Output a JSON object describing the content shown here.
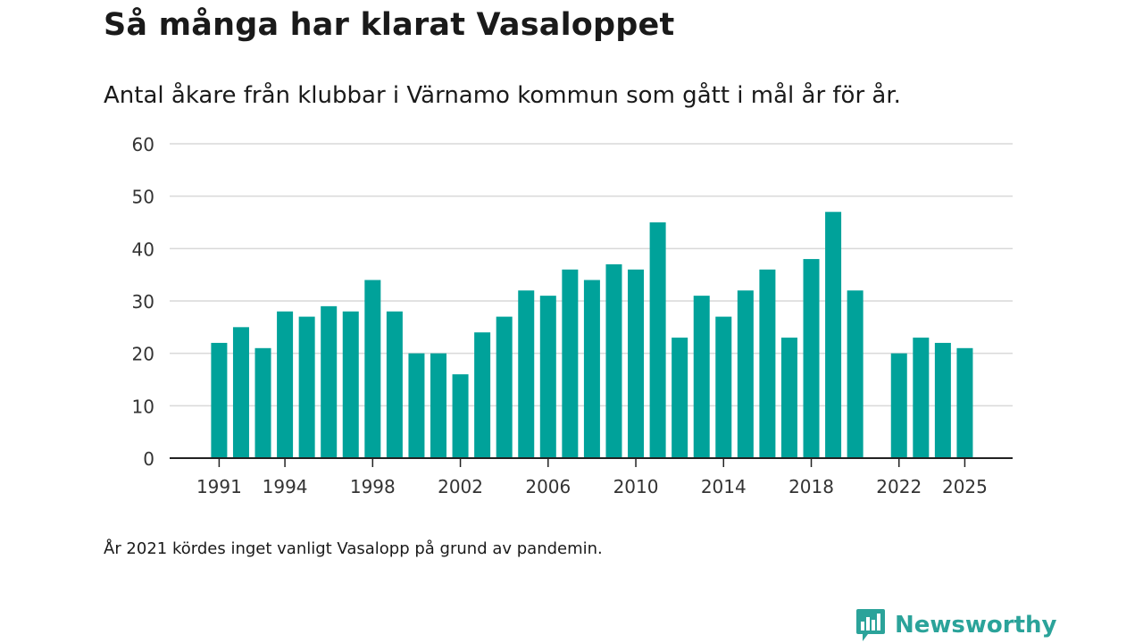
{
  "chart_data": {
    "type": "bar",
    "title": "Så många har klarat Vasaloppet",
    "subtitle": "Antal åkare från klubbar i Värnamo kommun som gått i mål år för år.",
    "x": [
      1991,
      1992,
      1993,
      1994,
      1995,
      1996,
      1997,
      1998,
      1999,
      2000,
      2001,
      2002,
      2003,
      2004,
      2005,
      2006,
      2007,
      2008,
      2009,
      2010,
      2011,
      2012,
      2013,
      2014,
      2015,
      2016,
      2017,
      2018,
      2019,
      2020,
      2021,
      2022,
      2023,
      2024,
      2025
    ],
    "values": [
      22,
      25,
      21,
      28,
      27,
      29,
      28,
      34,
      28,
      20,
      20,
      16,
      24,
      27,
      32,
      31,
      36,
      34,
      37,
      36,
      45,
      23,
      31,
      27,
      32,
      36,
      23,
      38,
      47,
      32,
      null,
      20,
      23,
      22,
      21
    ],
    "x_ticks": [
      "1991",
      "1994",
      "1998",
      "2002",
      "2006",
      "2010",
      "2014",
      "2018",
      "2022",
      "2025"
    ],
    "y_ticks": [
      "0",
      "10",
      "20",
      "30",
      "40",
      "50",
      "60"
    ],
    "ylim": [
      0,
      60
    ],
    "xlabel": "",
    "ylabel": "",
    "bar_color": "#00a29a",
    "grid": true,
    "note": "År 2021 kördes inget vanligt Vasalopp på grund av pandemin."
  },
  "brand": {
    "name": "Newsworthy",
    "color": "#2ba39a",
    "icon": "bar-chart-speech-bubble-icon"
  }
}
